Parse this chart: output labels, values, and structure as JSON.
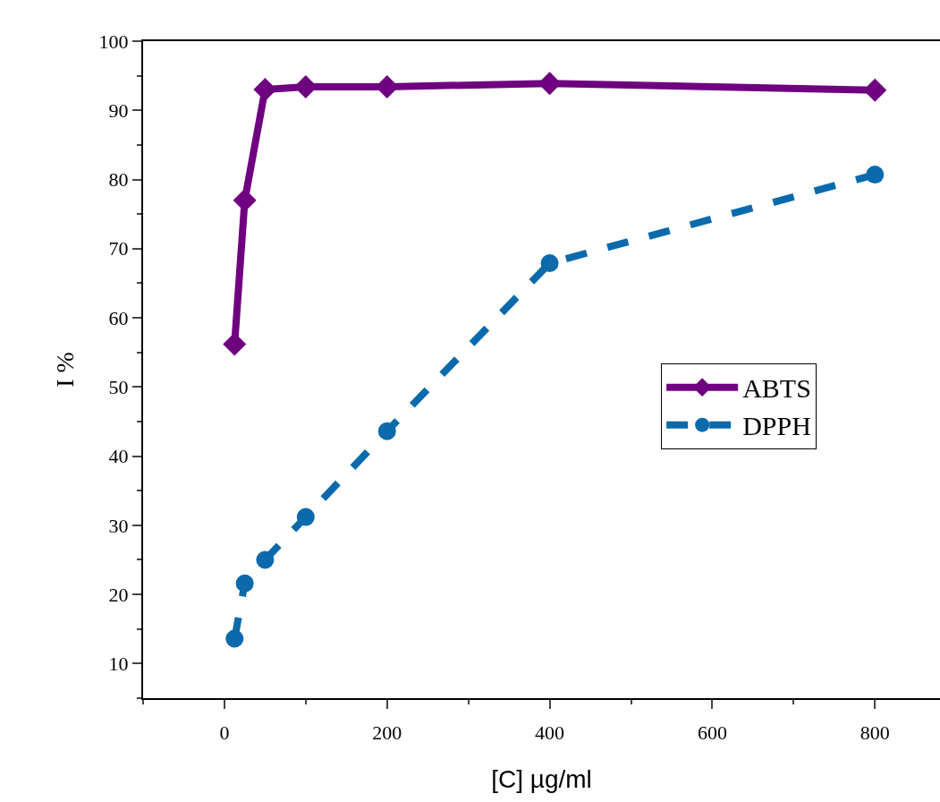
{
  "chart_data": {
    "type": "line",
    "xlabel": "[C] µg/ml",
    "ylabel": "I %",
    "x": [
      12.5,
      25,
      50,
      100,
      200,
      400,
      800
    ],
    "series": [
      {
        "name": "ABTS",
        "color": "#6f0080",
        "values": [
          56.2,
          77,
          93,
          93.4,
          93.4,
          93.9,
          92.9
        ],
        "marker": "diamond",
        "line_style": "solid"
      },
      {
        "name": "DPPH",
        "color": "#0a6aab",
        "values": [
          13.6,
          21.6,
          25,
          31.2,
          43.6,
          67.9,
          80.7
        ],
        "marker": "circle",
        "line_style": "dashed"
      }
    ],
    "xlim": [
      -100,
      880
    ],
    "xticks": [
      0,
      200,
      400,
      600,
      800
    ],
    "ylim": [
      5,
      100
    ],
    "yticks": [
      10,
      20,
      30,
      40,
      50,
      60,
      70,
      80,
      90,
      100
    ],
    "grid": false,
    "legend": "right"
  }
}
